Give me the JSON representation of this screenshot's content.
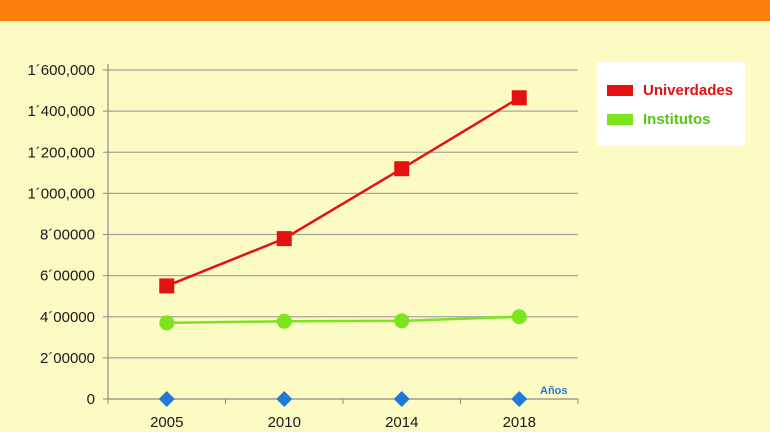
{
  "header": {
    "bar_color": "#fb7d0a"
  },
  "chart_data": {
    "type": "line",
    "categories": [
      "2005",
      "2010",
      "2014",
      "2018"
    ],
    "y_tick_labels": [
      "0",
      "2´00000",
      "4´00000",
      "6´00000",
      "8´00000",
      "1´000,000",
      "1´200,000",
      "1´400,000",
      "1´600,000"
    ],
    "ylim": [
      0,
      1600000
    ],
    "grid": true,
    "legend_position": "top-right",
    "axis_note": "Años",
    "axis_note_color": "#1f7ad6",
    "series": [
      {
        "name": "Univerdades",
        "values": [
          550000,
          780000,
          1120000,
          1465000
        ],
        "color": "#e3110f",
        "label_color": "#e3110f",
        "marker": "square"
      },
      {
        "name": "Institutos",
        "values": [
          370000,
          378000,
          380000,
          400000
        ],
        "color": "#7ce51e",
        "label_color": "#58c51a",
        "marker": "circle"
      },
      {
        "name": "",
        "values": [
          0,
          0,
          0,
          0
        ],
        "color": "#1f7ad6",
        "marker": "diamond",
        "line": false
      }
    ]
  }
}
